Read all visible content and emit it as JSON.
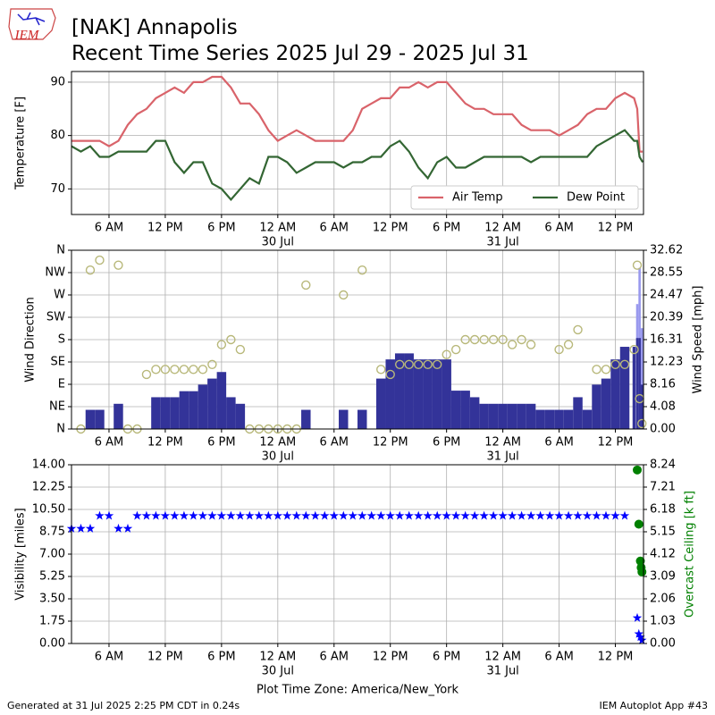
{
  "logo_text": "IEM",
  "title": "[NAK] Annapolis",
  "subtitle": "Recent Time Series 2025 Jul 29 - 2025 Jul 31",
  "footer_left": "Generated at 31 Jul 2025 2:25 PM CDT in 0.24s",
  "footer_right": "IEM Autoplot App #43",
  "chart_data": [
    {
      "type": "line",
      "ylabel": "Temperature [F]",
      "grid": true,
      "legend": "lower right",
      "xlim": [
        "2025-07-29 02:00",
        "2025-07-31 15:00"
      ],
      "xticks": [
        {
          "value": "2025-07-29 06:00",
          "label": "6 AM"
        },
        {
          "value": "2025-07-29 12:00",
          "label": "12 PM"
        },
        {
          "value": "2025-07-29 18:00",
          "label": "6 PM"
        },
        {
          "value": "2025-07-30 00:00",
          "label": "12 AM"
        },
        {
          "value": "2025-07-30 06:00",
          "label": "6 AM"
        },
        {
          "value": "2025-07-30 12:00",
          "label": "12 PM"
        },
        {
          "value": "2025-07-30 18:00",
          "label": "6 PM"
        },
        {
          "value": "2025-07-31 00:00",
          "label": "12 AM"
        },
        {
          "value": "2025-07-31 06:00",
          "label": "6 AM"
        },
        {
          "value": "2025-07-31 12:00",
          "label": "12 PM"
        }
      ],
      "xdates": [
        {
          "value": "2025-07-30 00:00",
          "label": "30 Jul"
        },
        {
          "value": "2025-07-31 00:00",
          "label": "31 Jul"
        }
      ],
      "ylim": [
        65.2,
        92
      ],
      "yticks": [
        70,
        80,
        90
      ],
      "x": [
        "2025-07-29 02:00",
        "2025-07-29 03:00",
        "2025-07-29 04:00",
        "2025-07-29 05:00",
        "2025-07-29 06:00",
        "2025-07-29 07:00",
        "2025-07-29 08:00",
        "2025-07-29 09:00",
        "2025-07-29 10:00",
        "2025-07-29 11:00",
        "2025-07-29 12:00",
        "2025-07-29 13:00",
        "2025-07-29 14:00",
        "2025-07-29 15:00",
        "2025-07-29 16:00",
        "2025-07-29 17:00",
        "2025-07-29 18:00",
        "2025-07-29 19:00",
        "2025-07-29 20:00",
        "2025-07-29 21:00",
        "2025-07-29 22:00",
        "2025-07-29 23:00",
        "2025-07-30 00:00",
        "2025-07-30 01:00",
        "2025-07-30 02:00",
        "2025-07-30 03:00",
        "2025-07-30 04:00",
        "2025-07-30 05:00",
        "2025-07-30 06:00",
        "2025-07-30 07:00",
        "2025-07-30 08:00",
        "2025-07-30 09:00",
        "2025-07-30 10:00",
        "2025-07-30 11:00",
        "2025-07-30 12:00",
        "2025-07-30 13:00",
        "2025-07-30 14:00",
        "2025-07-30 15:00",
        "2025-07-30 16:00",
        "2025-07-30 17:00",
        "2025-07-30 18:00",
        "2025-07-30 19:00",
        "2025-07-30 20:00",
        "2025-07-30 21:00",
        "2025-07-30 22:00",
        "2025-07-30 23:00",
        "2025-07-31 00:00",
        "2025-07-31 01:00",
        "2025-07-31 02:00",
        "2025-07-31 03:00",
        "2025-07-31 04:00",
        "2025-07-31 05:00",
        "2025-07-31 06:00",
        "2025-07-31 07:00",
        "2025-07-31 08:00",
        "2025-07-31 09:00",
        "2025-07-31 10:00",
        "2025-07-31 11:00",
        "2025-07-31 12:00",
        "2025-07-31 13:00",
        "2025-07-31 14:00",
        "2025-07-31 14:20",
        "2025-07-31 14:35",
        "2025-07-31 14:55"
      ],
      "series": [
        {
          "name": "Air Temp",
          "color": "#d9636a",
          "values": [
            79,
            79,
            79,
            79,
            78,
            79,
            82,
            84,
            85,
            87,
            88,
            89,
            88,
            90,
            90,
            91,
            91,
            89,
            86,
            86,
            84,
            81,
            79,
            80,
            81,
            80,
            79,
            79,
            79,
            79,
            81,
            85,
            86,
            87,
            87,
            89,
            89,
            90,
            89,
            90,
            90,
            88,
            86,
            85,
            85,
            84,
            84,
            84,
            82,
            81,
            81,
            81,
            80,
            81,
            82,
            84,
            85,
            85,
            87,
            88,
            87,
            85,
            77,
            77
          ]
        },
        {
          "name": "Dew Point",
          "color": "#336633",
          "values": [
            78,
            77,
            78,
            76,
            76,
            77,
            77,
            77,
            77,
            79,
            79,
            75,
            73,
            75,
            75,
            71,
            70,
            68,
            70,
            72,
            71,
            76,
            76,
            75,
            73,
            74,
            75,
            75,
            75,
            74,
            75,
            75,
            76,
            76,
            78,
            79,
            77,
            74,
            72,
            75,
            76,
            74,
            74,
            75,
            76,
            76,
            76,
            76,
            76,
            75,
            76,
            76,
            76,
            76,
            76,
            76,
            78,
            79,
            80,
            81,
            79,
            79,
            76,
            75
          ]
        }
      ]
    },
    {
      "type": "bar",
      "ylabel": "Wind Direction",
      "y2label": "Wind Speed [mph]",
      "grid": true,
      "xlim": [
        "2025-07-29 02:00",
        "2025-07-31 15:00"
      ],
      "xticks": [
        {
          "value": "2025-07-29 06:00",
          "label": "6 AM"
        },
        {
          "value": "2025-07-29 12:00",
          "label": "12 PM"
        },
        {
          "value": "2025-07-29 18:00",
          "label": "6 PM"
        },
        {
          "value": "2025-07-30 00:00",
          "label": "12 AM"
        },
        {
          "value": "2025-07-30 06:00",
          "label": "6 AM"
        },
        {
          "value": "2025-07-30 12:00",
          "label": "12 PM"
        },
        {
          "value": "2025-07-30 18:00",
          "label": "6 PM"
        },
        {
          "value": "2025-07-31 00:00",
          "label": "12 AM"
        },
        {
          "value": "2025-07-31 06:00",
          "label": "6 AM"
        },
        {
          "value": "2025-07-31 12:00",
          "label": "12 PM"
        }
      ],
      "xdates": [
        {
          "value": "2025-07-30 00:00",
          "label": "30 Jul"
        },
        {
          "value": "2025-07-31 00:00",
          "label": "31 Jul"
        }
      ],
      "ylim": [
        0,
        360
      ],
      "yticks": [
        {
          "value": 0,
          "label": "N"
        },
        {
          "value": 45,
          "label": "NE"
        },
        {
          "value": 90,
          "label": "E"
        },
        {
          "value": 135,
          "label": "SE"
        },
        {
          "value": 180,
          "label": "S"
        },
        {
          "value": 225,
          "label": "SW"
        },
        {
          "value": 270,
          "label": "W"
        },
        {
          "value": 315,
          "label": "NW"
        },
        {
          "value": 360,
          "label": "N"
        }
      ],
      "y2lim": [
        0,
        32.62
      ],
      "y2ticks": [
        {
          "value": 0,
          "label": "0.00"
        },
        4.08,
        8.16,
        12.23,
        16.31,
        20.39,
        24.47,
        28.55,
        32.62
      ],
      "x": [
        "2025-07-29 03:00",
        "2025-07-29 04:00",
        "2025-07-29 05:00",
        "2025-07-29 06:00",
        "2025-07-29 07:00",
        "2025-07-29 08:00",
        "2025-07-29 09:00",
        "2025-07-29 10:00",
        "2025-07-29 11:00",
        "2025-07-29 12:00",
        "2025-07-29 13:00",
        "2025-07-29 14:00",
        "2025-07-29 15:00",
        "2025-07-29 16:00",
        "2025-07-29 17:00",
        "2025-07-29 18:00",
        "2025-07-29 19:00",
        "2025-07-29 20:00",
        "2025-07-29 21:00",
        "2025-07-29 22:00",
        "2025-07-29 23:00",
        "2025-07-30 00:00",
        "2025-07-30 01:00",
        "2025-07-30 02:00",
        "2025-07-30 03:00",
        "2025-07-30 04:00",
        "2025-07-30 05:00",
        "2025-07-30 06:00",
        "2025-07-30 07:00",
        "2025-07-30 08:00",
        "2025-07-30 09:00",
        "2025-07-30 10:00",
        "2025-07-30 11:00",
        "2025-07-30 12:00",
        "2025-07-30 13:00",
        "2025-07-30 14:00",
        "2025-07-30 15:00",
        "2025-07-30 16:00",
        "2025-07-30 17:00",
        "2025-07-30 18:00",
        "2025-07-30 19:00",
        "2025-07-30 20:00",
        "2025-07-30 21:00",
        "2025-07-30 22:00",
        "2025-07-30 23:00",
        "2025-07-31 00:00",
        "2025-07-31 01:00",
        "2025-07-31 02:00",
        "2025-07-31 03:00",
        "2025-07-31 04:00",
        "2025-07-31 05:00",
        "2025-07-31 06:00",
        "2025-07-31 07:00",
        "2025-07-31 08:00",
        "2025-07-31 09:00",
        "2025-07-31 10:00",
        "2025-07-31 11:00",
        "2025-07-31 12:00",
        "2025-07-31 13:00",
        "2025-07-31 14:00",
        "2025-07-31 14:20",
        "2025-07-31 14:35",
        "2025-07-31 14:50"
      ],
      "series": [
        {
          "type": "bar",
          "axis": "y2",
          "color": "#9999ee",
          "x": [
            "2025-07-31 14:20",
            "2025-07-31 14:35",
            "2025-07-31 14:50"
          ],
          "values": [
            22.8,
            29.4,
            18.4
          ]
        },
        {
          "type": "bar",
          "axis": "y2",
          "color": "#333399",
          "values": [
            0,
            3.5,
            3.5,
            0,
            4.6,
            0,
            0,
            0,
            5.8,
            5.8,
            5.8,
            6.9,
            6.9,
            8.1,
            9.2,
            10.4,
            5.8,
            4.6,
            0,
            0,
            0,
            0,
            0,
            0,
            3.5,
            0,
            0,
            0,
            3.5,
            0,
            3.5,
            0,
            9.2,
            12.7,
            13.8,
            13.8,
            12.7,
            12.7,
            12.7,
            12.7,
            7,
            7,
            5.8,
            4.6,
            4.6,
            4.6,
            4.6,
            4.6,
            4.6,
            3.5,
            3.5,
            3.5,
            3.5,
            5.8,
            3.5,
            8.1,
            9.2,
            12.7,
            15,
            15,
            16.6,
            16.6,
            8.1
          ]
        },
        {
          "type": "scatter",
          "marker": "circle-open",
          "color": "#b8b87a",
          "values": [
            0,
            320,
            340,
            null,
            330,
            0,
            0,
            110,
            120,
            120,
            120,
            120,
            120,
            120,
            130,
            170,
            180,
            160,
            0,
            0,
            0,
            0,
            0,
            0,
            290,
            null,
            null,
            null,
            270,
            null,
            320,
            null,
            120,
            110,
            130,
            130,
            130,
            130,
            130,
            150,
            160,
            180,
            180,
            180,
            180,
            180,
            170,
            180,
            170,
            null,
            null,
            160,
            170,
            200,
            null,
            120,
            120,
            130,
            130,
            160,
            330,
            61,
            11
          ]
        }
      ]
    },
    {
      "type": "scatter",
      "ylabel": "Visibility [miles]",
      "y2label": "Overcast Ceiling [k ft]",
      "y2label_color": "#008000",
      "xlabel": "Plot Time Zone: America/New_York",
      "grid": true,
      "xlim": [
        "2025-07-29 02:00",
        "2025-07-31 15:00"
      ],
      "xticks": [
        {
          "value": "2025-07-29 06:00",
          "label": "6 AM"
        },
        {
          "value": "2025-07-29 12:00",
          "label": "12 PM"
        },
        {
          "value": "2025-07-29 18:00",
          "label": "6 PM"
        },
        {
          "value": "2025-07-30 00:00",
          "label": "12 AM"
        },
        {
          "value": "2025-07-30 06:00",
          "label": "6 AM"
        },
        {
          "value": "2025-07-30 12:00",
          "label": "12 PM"
        },
        {
          "value": "2025-07-30 18:00",
          "label": "6 PM"
        },
        {
          "value": "2025-07-31 00:00",
          "label": "12 AM"
        },
        {
          "value": "2025-07-31 06:00",
          "label": "6 AM"
        },
        {
          "value": "2025-07-31 12:00",
          "label": "12 PM"
        }
      ],
      "xdates": [
        {
          "value": "2025-07-30 00:00",
          "label": "30 Jul"
        },
        {
          "value": "2025-07-31 00:00",
          "label": "31 Jul"
        }
      ],
      "ylim": [
        0,
        14
      ],
      "yticks": [
        {
          "value": 0,
          "label": "0.00"
        },
        1.75,
        {
          "value": 3.5,
          "label": "3.50"
        },
        5.25,
        {
          "value": 7,
          "label": "7.00"
        },
        8.75,
        {
          "value": 10.5,
          "label": "10.50"
        },
        12.25,
        {
          "value": 14,
          "label": "14.00"
        }
      ],
      "y2lim": [
        0,
        8.24
      ],
      "y2ticks": [
        {
          "value": 0,
          "label": "0.00"
        },
        1.03,
        2.06,
        3.09,
        4.12,
        5.15,
        6.18,
        7.21,
        8.24
      ],
      "x": [
        "2025-07-29 02:00",
        "2025-07-29 03:00",
        "2025-07-29 04:00",
        "2025-07-29 05:00",
        "2025-07-29 06:00",
        "2025-07-29 07:00",
        "2025-07-29 08:00",
        "2025-07-29 09:00",
        "2025-07-29 10:00",
        "2025-07-29 11:00",
        "2025-07-29 12:00",
        "2025-07-29 13:00",
        "2025-07-29 14:00",
        "2025-07-29 15:00",
        "2025-07-29 16:00",
        "2025-07-29 17:00",
        "2025-07-29 18:00",
        "2025-07-29 19:00",
        "2025-07-29 20:00",
        "2025-07-29 21:00",
        "2025-07-29 22:00",
        "2025-07-29 23:00",
        "2025-07-30 00:00",
        "2025-07-30 01:00",
        "2025-07-30 02:00",
        "2025-07-30 03:00",
        "2025-07-30 04:00",
        "2025-07-30 05:00",
        "2025-07-30 06:00",
        "2025-07-30 07:00",
        "2025-07-30 08:00",
        "2025-07-30 09:00",
        "2025-07-30 10:00",
        "2025-07-30 11:00",
        "2025-07-30 12:00",
        "2025-07-30 13:00",
        "2025-07-30 14:00",
        "2025-07-30 15:00",
        "2025-07-30 16:00",
        "2025-07-30 17:00",
        "2025-07-30 18:00",
        "2025-07-30 19:00",
        "2025-07-30 20:00",
        "2025-07-30 21:00",
        "2025-07-30 22:00",
        "2025-07-30 23:00",
        "2025-07-31 00:00",
        "2025-07-31 01:00",
        "2025-07-31 02:00",
        "2025-07-31 03:00",
        "2025-07-31 04:00",
        "2025-07-31 05:00",
        "2025-07-31 06:00",
        "2025-07-31 07:00",
        "2025-07-31 08:00",
        "2025-07-31 09:00",
        "2025-07-31 10:00",
        "2025-07-31 11:00",
        "2025-07-31 12:00",
        "2025-07-31 13:00",
        "2025-07-31 14:20",
        "2025-07-31 14:30",
        "2025-07-31 14:40",
        "2025-07-31 14:50"
      ],
      "series": [
        {
          "marker": "star",
          "color": "#0000ff",
          "values": [
            9,
            9,
            9,
            10,
            10,
            9,
            9,
            10,
            10,
            10,
            10,
            10,
            10,
            10,
            10,
            10,
            10,
            10,
            10,
            10,
            10,
            10,
            10,
            10,
            10,
            10,
            10,
            10,
            10,
            10,
            10,
            10,
            10,
            10,
            10,
            10,
            10,
            10,
            10,
            10,
            10,
            10,
            10,
            10,
            10,
            10,
            10,
            10,
            10,
            10,
            10,
            10,
            10,
            10,
            10,
            10,
            10,
            10,
            10,
            10,
            2,
            0.75,
            0.5,
            0.25
          ]
        },
        {
          "marker": "circle",
          "axis": "y2",
          "color": "#008000",
          "x": [
            "2025-07-31 14:20",
            "2025-07-31 14:30",
            "2025-07-31 14:40",
            "2025-07-31 14:45",
            "2025-07-31 14:50"
          ],
          "values": [
            8,
            5.5,
            3.8,
            3.5,
            3.3
          ]
        }
      ]
    }
  ]
}
